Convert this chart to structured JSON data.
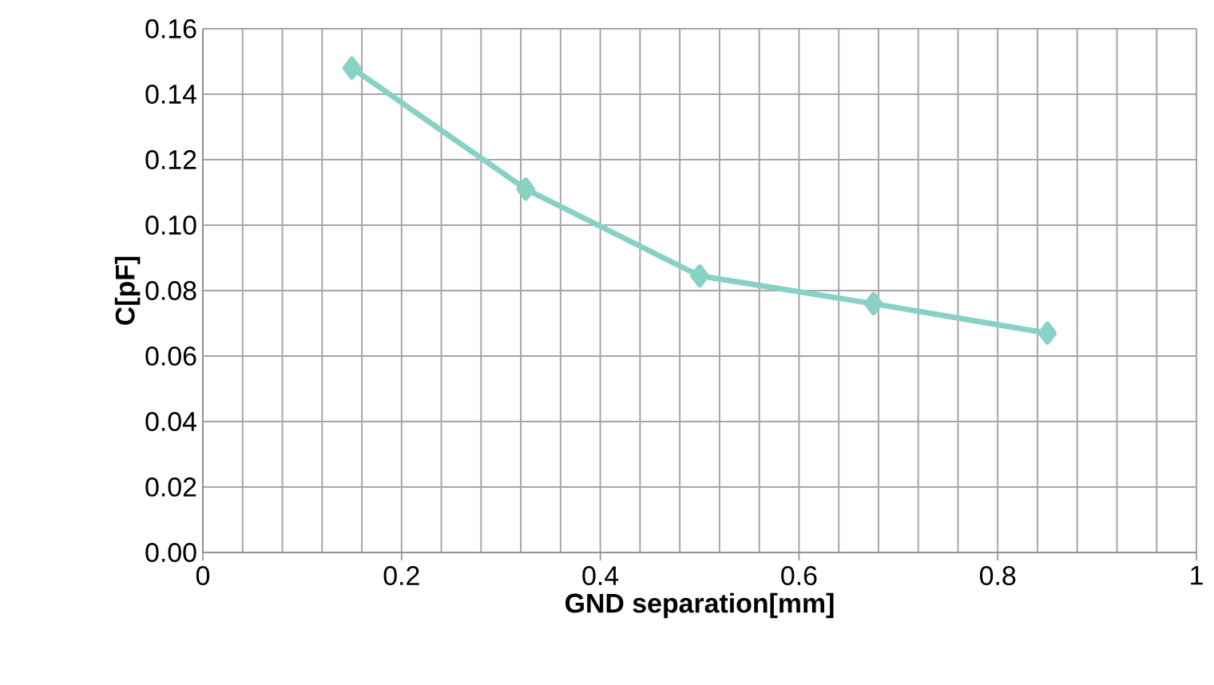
{
  "chart_data": {
    "type": "line",
    "xlabel": "GND separation[mm]",
    "ylabel": "C[pF]",
    "x": [
      0.15,
      0.325,
      0.5,
      0.675,
      0.85
    ],
    "series": [
      {
        "color": "#88d1c4",
        "values": [
          0.148,
          0.111,
          0.0845,
          0.076,
          0.067
        ]
      }
    ],
    "xlim": [
      0,
      1
    ],
    "xticks": [
      0,
      0.2,
      0.4,
      0.6,
      0.8,
      1
    ],
    "ylim": [
      0,
      0.16
    ],
    "yticks": [
      {
        "value": 0,
        "label": "0.00"
      },
      {
        "value": 0.02,
        "label": "0.02"
      },
      {
        "value": 0.04,
        "label": "0.04"
      },
      {
        "value": 0.06,
        "label": "0.06"
      },
      {
        "value": 0.08,
        "label": "0.08"
      },
      {
        "value": 0.1,
        "label": "0.10"
      },
      {
        "value": 0.12,
        "label": "0.12"
      },
      {
        "value": 0.14,
        "label": "0.14"
      },
      {
        "value": 0.16,
        "label": "0.16"
      }
    ],
    "grid": true,
    "marker": "diamond",
    "line_style": "solid"
  }
}
